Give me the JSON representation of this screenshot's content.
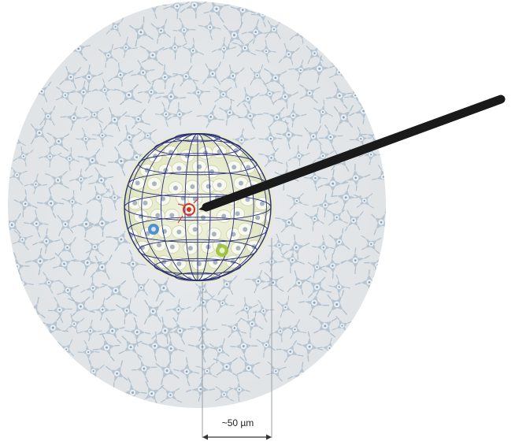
{
  "figure": {
    "scale_label": "~50 µm",
    "colors": {
      "tissue_background": "#e2e5e8",
      "neuron_cell": "#aebfcd",
      "neuron_nucleus": "#e9eef3",
      "recording_sphere_fill": "#e3e8c6",
      "sphere_grid": "#2a2f7a",
      "electrode": "#1a1a1a",
      "cell_red": "#d0342c",
      "cell_blue": "#3a7fc7",
      "cell_green": "#9cc03a",
      "scale_lines": "#9aa0a6"
    },
    "icons": [
      "neuron-cell-icon",
      "electrode-icon",
      "sphere-grid-icon",
      "scale-arrow-icon"
    ]
  }
}
